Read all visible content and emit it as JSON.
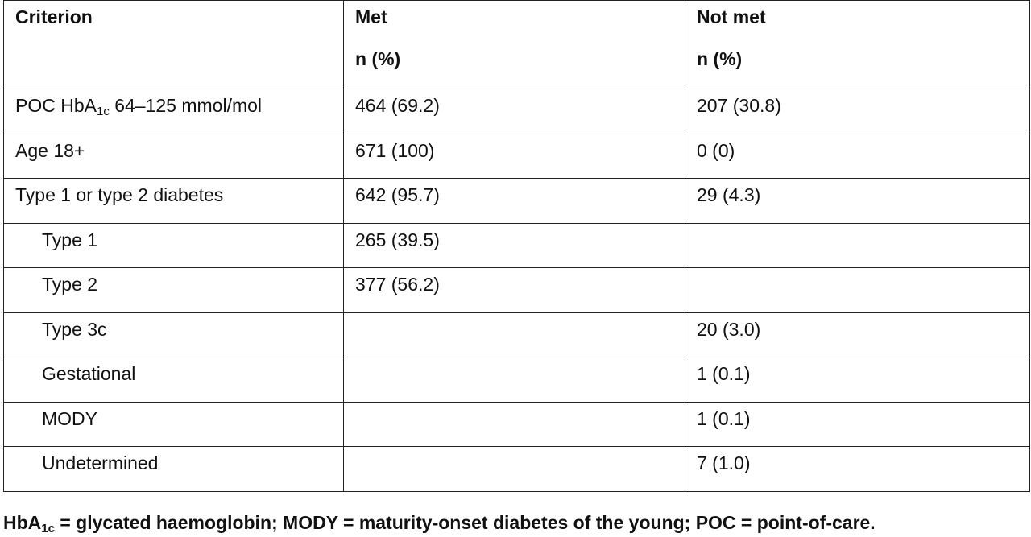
{
  "table": {
    "headers": {
      "criterion": "Criterion",
      "met": "Met",
      "met_sub": "n (%)",
      "not_met": "Not met",
      "not_met_sub": "n (%)"
    },
    "rows": [
      {
        "label_pre": "POC HbA",
        "label_sub": "1c",
        "label_post": " 64–125 mmol/mol",
        "met": "464 (69.2)",
        "not_met": "207 (30.8)",
        "indent": false
      },
      {
        "label_pre": "Age 18+",
        "label_sub": "",
        "label_post": "",
        "met": "671 (100)",
        "not_met": "0 (0)",
        "indent": false
      },
      {
        "label_pre": "Type 1 or type 2 diabetes",
        "label_sub": "",
        "label_post": "",
        "met": "642 (95.7)",
        "not_met": "29 (4.3)",
        "indent": false
      },
      {
        "label_pre": "Type 1",
        "label_sub": "",
        "label_post": "",
        "met": "265 (39.5)",
        "not_met": "",
        "indent": true
      },
      {
        "label_pre": "Type 2",
        "label_sub": "",
        "label_post": "",
        "met": "377 (56.2)",
        "not_met": "",
        "indent": true
      },
      {
        "label_pre": "Type 3c",
        "label_sub": "",
        "label_post": "",
        "met": "",
        "not_met": "20 (3.0)",
        "indent": true
      },
      {
        "label_pre": "Gestational",
        "label_sub": "",
        "label_post": "",
        "met": "",
        "not_met": "1 (0.1)",
        "indent": true
      },
      {
        "label_pre": "MODY",
        "label_sub": "",
        "label_post": "",
        "met": "",
        "not_met": "1 (0.1)",
        "indent": true
      },
      {
        "label_pre": "Undetermined",
        "label_sub": "",
        "label_post": "",
        "met": "",
        "not_met": "7 (1.0)",
        "indent": true
      }
    ]
  },
  "footnote": {
    "pre": "HbA",
    "sub": "1c",
    "post": " = glycated haemoglobin; MODY = maturity-onset diabetes of the young; POC = point-of-care."
  }
}
